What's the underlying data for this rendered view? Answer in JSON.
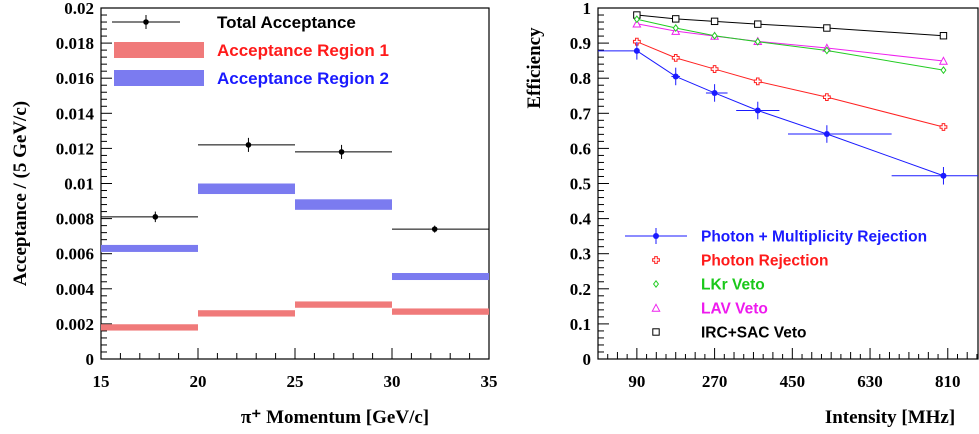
{
  "chart_data": [
    {
      "type": "bar",
      "xlabel": "π⁺ Momentum [GeV/c]",
      "ylabel": "Acceptance / (5 GeV/c)",
      "xlim": [
        15,
        35
      ],
      "ylim": [
        0,
        0.02
      ],
      "x_ticks": [
        "15",
        "20",
        "25",
        "30",
        "35"
      ],
      "y_ticks": [
        "0",
        "0.002",
        "0.004",
        "0.006",
        "0.008",
        "0.01",
        "0.012",
        "0.014",
        "0.016",
        "0.018",
        "0.02"
      ],
      "grid": false,
      "legend_position": "top-left",
      "bins": [
        [
          15,
          20
        ],
        [
          20,
          25
        ],
        [
          25,
          30
        ],
        [
          30,
          35
        ]
      ],
      "series": [
        {
          "name": "Total Acceptance",
          "style": "points",
          "color": "#000000",
          "x": [
            17.8,
            22.6,
            27.4,
            32.2
          ],
          "values": [
            0.0081,
            0.0122,
            0.0118,
            0.0074
          ],
          "errors": [
            0.0003,
            0.0004,
            0.0004,
            0.0002
          ]
        },
        {
          "name": "Acceptance Region 1",
          "style": "band",
          "color": "#f07a7a",
          "values": [
            0.0018,
            0.0026,
            0.0031,
            0.0027
          ],
          "errors": [
            0.0001,
            0.0001,
            0.00015,
            0.0001
          ]
        },
        {
          "name": "Acceptance Region 2",
          "style": "band",
          "color": "#7b7bf0",
          "values": [
            0.0063,
            0.0097,
            0.0088,
            0.0047
          ],
          "errors": [
            0.0002,
            0.0003,
            0.0003,
            0.0002
          ]
        }
      ]
    },
    {
      "type": "line",
      "xlabel": "Intensity [MHz]",
      "ylabel": "Efficiency",
      "xlim": [
        0,
        880
      ],
      "ylim": [
        0,
        1
      ],
      "x_ticks": [
        "90",
        "270",
        "450",
        "630",
        "810"
      ],
      "y_ticks": [
        "0",
        "0.1",
        "0.2",
        "0.3",
        "0.4",
        "0.5",
        "0.6",
        "0.7",
        "0.8",
        "0.9",
        "1"
      ],
      "grid": false,
      "legend_position": "bottom-left",
      "series": [
        {
          "name": "Photon + Multiplicity Rejection",
          "color": "#1a1aff",
          "marker": "filled-circle",
          "x": [
            90,
            180,
            270,
            370,
            530,
            800
          ],
          "values": [
            0.878,
            0.805,
            0.758,
            0.708,
            0.641,
            0.522
          ],
          "x_errors": [
            [
              0,
              90
            ],
            [
              170,
              190
            ],
            [
              250,
              300
            ],
            [
              320,
              420
            ],
            [
              440,
              680
            ],
            [
              680,
              880
            ]
          ],
          "errors": [
            0.025,
            0.025,
            0.025,
            0.025,
            0.025,
            0.025
          ]
        },
        {
          "name": "Photon Rejection",
          "color": "#ff2222",
          "marker": "open-cross",
          "x": [
            90,
            180,
            270,
            370,
            530,
            800
          ],
          "values": [
            0.904,
            0.858,
            0.826,
            0.791,
            0.746,
            0.661
          ]
        },
        {
          "name": "LKr Veto",
          "color": "#22cc22",
          "marker": "open-diamond",
          "x": [
            90,
            180,
            270,
            370,
            530,
            800
          ],
          "values": [
            0.968,
            0.943,
            0.921,
            0.904,
            0.879,
            0.823
          ]
        },
        {
          "name": "LAV Veto",
          "color": "#ee22ee",
          "marker": "open-triangle",
          "x": [
            90,
            180,
            270,
            370,
            530,
            800
          ],
          "values": [
            0.955,
            0.934,
            0.92,
            0.905,
            0.886,
            0.849
          ]
        },
        {
          "name": "IRC+SAC Veto",
          "color": "#000000",
          "marker": "open-square",
          "x": [
            90,
            180,
            270,
            370,
            530,
            800
          ],
          "values": [
            0.98,
            0.969,
            0.962,
            0.954,
            0.943,
            0.921
          ]
        }
      ]
    }
  ]
}
